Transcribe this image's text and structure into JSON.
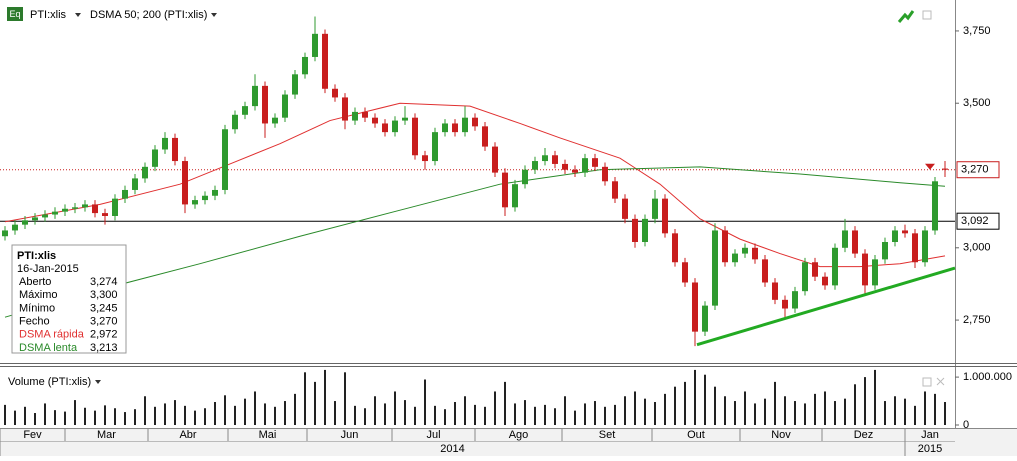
{
  "chart_data": {
    "type": "candlestick",
    "symbol": "PTI:xlis",
    "indicator_label": "DSMA 50; 200 (PTI:xlis)",
    "volume_label": "Volume (PTI:xlis)",
    "up_color": "#2f9a2f",
    "down_color": "#c81e1e",
    "open": [
      3040,
      3060,
      3080,
      3095,
      3105,
      3115,
      3125,
      3135,
      3140,
      3150,
      3120,
      3110,
      3170,
      3200,
      3240,
      3280,
      3340,
      3380,
      3300,
      3150,
      3165,
      3180,
      3200,
      3410,
      3460,
      3490,
      3560,
      3430,
      3450,
      3530,
      3600,
      3660,
      3740,
      3550,
      3520,
      3440,
      3470,
      3450,
      3430,
      3400,
      3440,
      3450,
      3320,
      3300,
      3400,
      3430,
      3400,
      3450,
      3420,
      3350,
      3260,
      3140,
      3220,
      3270,
      3300,
      3320,
      3290,
      3270,
      3260,
      3310,
      3280,
      3230,
      3170,
      3100,
      3020,
      3100,
      3170,
      3050,
      2950,
      2880,
      2710,
      2800,
      3060,
      2950,
      2980,
      3000,
      2960,
      2880,
      2820,
      2790,
      2850,
      2950,
      2900,
      2870,
      3000,
      3060,
      2980,
      2870,
      2960,
      3020,
      3060,
      3050,
      2950,
      3060,
      3274
    ],
    "high": [
      3075,
      3095,
      3110,
      3120,
      3130,
      3140,
      3150,
      3155,
      3165,
      3165,
      3135,
      3185,
      3215,
      3255,
      3295,
      3355,
      3400,
      3395,
      3315,
      3180,
      3195,
      3215,
      3425,
      3475,
      3505,
      3600,
      3575,
      3465,
      3545,
      3615,
      3675,
      3800,
      3755,
      3565,
      3535,
      3485,
      3485,
      3465,
      3445,
      3455,
      3490,
      3465,
      3335,
      3415,
      3445,
      3445,
      3490,
      3465,
      3435,
      3365,
      3275,
      3235,
      3285,
      3315,
      3345,
      3335,
      3305,
      3285,
      3325,
      3325,
      3295,
      3245,
      3185,
      3115,
      3115,
      3200,
      3185,
      3065,
      2965,
      2895,
      2815,
      3085,
      3075,
      2995,
      3015,
      3015,
      2975,
      2895,
      2835,
      2865,
      2965,
      2965,
      2915,
      3015,
      3100,
      3075,
      2995,
      2975,
      3035,
      3075,
      3080,
      3065,
      3075,
      3245,
      3300
    ],
    "low": [
      3025,
      3045,
      3065,
      3080,
      3090,
      3100,
      3110,
      3120,
      3125,
      3105,
      3080,
      3095,
      3155,
      3185,
      3225,
      3265,
      3325,
      3285,
      3120,
      3135,
      3150,
      3165,
      3185,
      3395,
      3445,
      3475,
      3380,
      3415,
      3435,
      3515,
      3585,
      3645,
      3535,
      3505,
      3410,
      3425,
      3435,
      3415,
      3385,
      3385,
      3425,
      3305,
      3270,
      3285,
      3385,
      3385,
      3385,
      3405,
      3335,
      3245,
      3110,
      3125,
      3205,
      3255,
      3285,
      3275,
      3255,
      3245,
      3245,
      3265,
      3215,
      3155,
      3085,
      3000,
      3005,
      3085,
      3035,
      2935,
      2865,
      2660,
      2695,
      2785,
      2935,
      2935,
      2965,
      2945,
      2865,
      2805,
      2760,
      2775,
      2835,
      2885,
      2855,
      2855,
      2985,
      2965,
      2840,
      2855,
      2945,
      3005,
      3035,
      2930,
      2935,
      3045,
      3245
    ],
    "close": [
      3060,
      3080,
      3095,
      3105,
      3115,
      3125,
      3135,
      3140,
      3150,
      3120,
      3110,
      3170,
      3200,
      3240,
      3280,
      3340,
      3380,
      3300,
      3150,
      3165,
      3180,
      3200,
      3410,
      3460,
      3490,
      3560,
      3430,
      3450,
      3530,
      3600,
      3660,
      3740,
      3550,
      3520,
      3440,
      3470,
      3450,
      3430,
      3400,
      3440,
      3450,
      3320,
      3300,
      3400,
      3430,
      3400,
      3450,
      3420,
      3350,
      3260,
      3140,
      3220,
      3270,
      3300,
      3320,
      3290,
      3270,
      3260,
      3310,
      3280,
      3230,
      3170,
      3100,
      3020,
      3100,
      3170,
      3050,
      2950,
      2880,
      2710,
      2800,
      3060,
      2950,
      2980,
      3000,
      2960,
      2880,
      2820,
      2790,
      2850,
      2950,
      2900,
      2870,
      3000,
      3060,
      2980,
      2870,
      2960,
      3020,
      3060,
      3050,
      2950,
      3060,
      3230,
      3270
    ],
    "volume": [
      420000,
      300000,
      380000,
      250000,
      450000,
      310000,
      280000,
      520000,
      360000,
      300000,
      410000,
      350000,
      270000,
      330000,
      600000,
      380000,
      450000,
      520000,
      400000,
      300000,
      350000,
      480000,
      620000,
      400000,
      550000,
      700000,
      450000,
      380000,
      500000,
      650000,
      1100000,
      900000,
      1150000,
      500000,
      1100000,
      400000,
      350000,
      600000,
      450000,
      700000,
      520000,
      380000,
      950000,
      400000,
      330000,
      480000,
      600000,
      420000,
      380000,
      700000,
      900000,
      450000,
      520000,
      380000,
      420000,
      350000,
      600000,
      300000,
      450000,
      500000,
      380000,
      420000,
      600000,
      700000,
      550000,
      480000,
      650000,
      800000,
      900000,
      1150000,
      1050000,
      800000,
      600000,
      500000,
      700000,
      450000,
      550000,
      900000,
      600000,
      500000,
      450000,
      650000,
      700000,
      500000,
      550000,
      850000,
      1000000,
      1150000,
      500000,
      600000,
      550000,
      400000,
      700000,
      650000,
      480000
    ],
    "volume_color": "#222222",
    "series": [
      {
        "color": "#e03030",
        "x": [
          0,
          9.5,
          17.5,
          22.5,
          27.5,
          32.5,
          39.5,
          46.5,
          51.5,
          55.5,
          61.5,
          65.5,
          69.5,
          73.5,
          77.5,
          81.5,
          85.5,
          89.5,
          94
        ],
        "values": [
          3090,
          3150,
          3220,
          3290,
          3360,
          3440,
          3500,
          3490,
          3430,
          3380,
          3310,
          3220,
          3100,
          3030,
          2980,
          2935,
          2935,
          2945,
          2972
        ]
      },
      {
        "color": "#2a8a2a",
        "x": [
          0,
          9.5,
          19.5,
          29.5,
          39.5,
          49.5,
          59.5,
          69.5,
          79.5,
          89.5,
          94
        ],
        "values": [
          2760,
          2855,
          2945,
          3040,
          3130,
          3220,
          3270,
          3280,
          3255,
          3225,
          3213
        ]
      }
    ],
    "trendline": {
      "color": "#22aa22",
      "x": [
        69.2,
        95
      ],
      "values": [
        2665,
        2930
      ]
    },
    "price_line": {
      "value": 3270,
      "label": "3,270",
      "color": "#c81e1e"
    },
    "level_line": {
      "value": 3092,
      "label": "3,092",
      "color": "#000000"
    },
    "xlim": [
      -0.5,
      95
    ],
    "ylim": [
      2605,
      3857
    ],
    "yticks": [
      {
        "value": 2750,
        "label": "2,750"
      },
      {
        "value": 3000,
        "label": "3,000"
      },
      {
        "value": 3500,
        "label": "3,500"
      },
      {
        "value": 3750,
        "label": "3,750"
      }
    ],
    "volume_ylim": [
      0,
      1190000
    ],
    "volume_ticks": [
      {
        "value": 1000000,
        "label": "1.000.000"
      },
      0
    ],
    "xticks": [
      {
        "value": -0.5,
        "label": "Fev"
      },
      {
        "value": 6,
        "label": "Mar"
      },
      {
        "value": 14.3,
        "label": "Abr"
      },
      {
        "value": 22.3,
        "label": "Mai"
      },
      {
        "value": 30.2,
        "label": "Jun"
      },
      {
        "value": 38.7,
        "label": "Jul"
      },
      {
        "value": 47,
        "label": "Ago"
      },
      {
        "value": 55.7,
        "label": "Set"
      },
      {
        "value": 64.7,
        "label": "Out"
      },
      {
        "value": 73.5,
        "label": "Nov"
      },
      {
        "value": 81.7,
        "label": "Dez"
      },
      {
        "value": 90,
        "label": "Jan"
      }
    ],
    "year_ticks": [
      {
        "value": -0.5,
        "label": "2014"
      },
      {
        "value": 90,
        "label": "2015"
      }
    ],
    "info": {
      "title": "PTI:xlis",
      "date": "16-Jan-2015",
      "rows": [
        {
          "label": "Aberto",
          "value": "3,274"
        },
        {
          "label": "Máximo",
          "value": "3,300"
        },
        {
          "label": "Mínimo",
          "value": "3,245"
        },
        {
          "label": "Fecho",
          "value": "3,270"
        },
        {
          "label": "DSMA rápida",
          "value": "2,972",
          "color": "#e03030"
        },
        {
          "label": "DSMA lenta",
          "value": "3,213",
          "color": "#2a8a2a"
        }
      ]
    }
  }
}
